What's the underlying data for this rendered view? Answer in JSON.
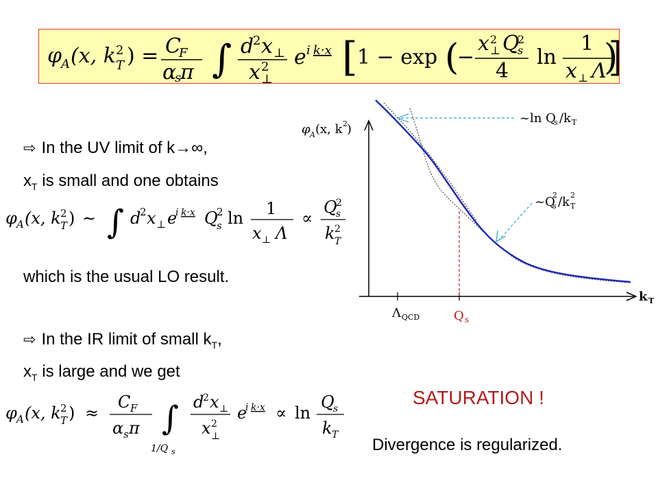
{
  "formula_main": {
    "lhs": "φ",
    "sub_a": "A",
    "args": "(x, k",
    "sup2": "2",
    "subT": "T",
    "close": ") =",
    "cf": "C",
    "cf_sub": "F",
    "alpha": "α",
    "alpha_sub": "s",
    "pi": " π",
    "integral": "∫",
    "d2x": "d",
    "d2x_sup": "2",
    "d2x_x": "x",
    "perp": "⊥",
    "x2": "x",
    "x2_sup": "2",
    "x2_sub": "⊥",
    "exp_e": "e",
    "exp_i": "i",
    "k_dot_x": "k·x",
    "bracket_open": "[",
    "one_minus": "1 − exp",
    "paren_open": "(",
    "minus": "−",
    "x_perp2": "x",
    "qs2": "Q",
    "qs_sub": "s",
    "four": "4",
    "ln": "ln",
    "one": "1",
    "x_lambda": "x",
    "lambda": "Λ",
    "paren_close": ")",
    "bracket_close": "]"
  },
  "uv": {
    "bullet": "⇨",
    "line1": "In the UV limit of k→∞,",
    "line2_pre": "x",
    "line2_sub": "T",
    "line2_post": " is small and one obtains",
    "formula_lhs": "φ",
    "formula_lhs_sub": "A",
    "formula_args": "(x, k",
    "formula_sup": "2",
    "formula_sub": "T",
    "formula_close": ")",
    "sim": "∼",
    "integral": "∫",
    "body": "d",
    "body_sup": "2",
    "body_x": "x",
    "body_perp": "⊥",
    "e": "e",
    "i": "i",
    "kdotx": "k·x",
    "q": "Q",
    "q_sup": "2",
    "q_sub": "s",
    "ln": "ln",
    "one": "1",
    "den": "x",
    "den_perp": "⊥",
    "den_lambda": "Λ",
    "prop": "∝",
    "frac_num": "Q",
    "frac_num_sup": "2",
    "frac_num_sub": "s",
    "frac_den": "k",
    "frac_den_sup": "2",
    "frac_den_sub": "T",
    "result": "which is the usual LO result."
  },
  "ir": {
    "bullet": "⇨",
    "line1_pre": "In the IR limit of small k",
    "line1_sub": "T",
    "line1_post": ",",
    "line2_pre": "x",
    "line2_sub": "T",
    "line2_post": " is large and we get",
    "formula_lhs": "φ",
    "formula_lhs_sub": "A",
    "formula_args": "(x, k",
    "formula_sup": "2",
    "formula_sub": "T",
    "formula_close": ")",
    "approx": "≈",
    "cf": "C",
    "cf_sub": "F",
    "alpha": "α",
    "alpha_sub": "s",
    "pi": " π",
    "integral": "∫",
    "lower_limit": "1/Q",
    "lower_limit_sub": "s",
    "num": "d",
    "num_sup": "2",
    "num_x": "x",
    "num_perp": "⊥",
    "den": "x",
    "den_sup": "2",
    "den_perp": "⊥",
    "e": "e",
    "i": "i",
    "kdotx": "k·x",
    "prop": "∝",
    "ln": "ln",
    "q": "Q",
    "q_sub": "s",
    "k": "k",
    "k_sub": "T"
  },
  "graph": {
    "y_axis_label": "φ",
    "y_axis_label_sub": "A",
    "y_axis_label_args": "(x, k",
    "y_axis_label_sup": "2",
    "y_axis_label_close": " )",
    "x_axis_label": "k",
    "x_axis_label_sub": "T",
    "lambda_label": "Λ",
    "lambda_sub": "QCD",
    "qs_label": "Q",
    "qs_sub": "s",
    "uv_annotation": "~ln Q",
    "uv_annotation_sub": "s",
    "uv_annotation_post": "/k",
    "uv_annotation_sub2": "T",
    "ir_annotation": "~Q",
    "ir_annotation_sup": "2",
    "ir_annotation_sub": "s",
    "ir_annotation_mid": "/k",
    "ir_annotation_sup2": "2",
    "ir_annotation_sub2": "T",
    "colors": {
      "curve": "#1f2db8",
      "asymptote": "#4b4b4b",
      "qs_line": "#d12c2c",
      "arrow": "#2ca3c8",
      "qs_label": "#b51b1b"
    }
  },
  "saturation": {
    "title": "SATURATION !",
    "note": "Divergence is regularized."
  }
}
